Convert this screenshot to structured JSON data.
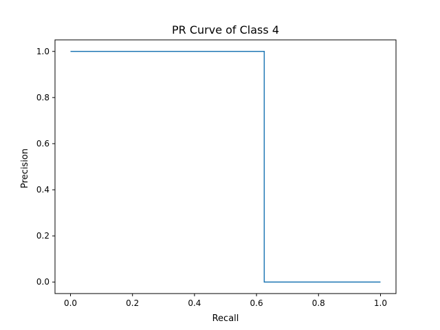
{
  "chart_data": {
    "type": "line",
    "title": "PR Curve of Class 4",
    "xlabel": "Recall",
    "ylabel": "Precision",
    "xlim": [
      -0.05,
      1.05
    ],
    "ylim": [
      -0.05,
      1.05
    ],
    "x_ticks": [
      "0.0",
      "0.2",
      "0.4",
      "0.6",
      "0.8",
      "1.0"
    ],
    "y_ticks": [
      "0.0",
      "0.2",
      "0.4",
      "0.6",
      "0.8",
      "1.0"
    ],
    "grid": false,
    "series": [
      {
        "color": "#1f77b4",
        "step": "post",
        "x": [
          0.0,
          0.625,
          0.625,
          1.0
        ],
        "y": [
          1.0,
          1.0,
          0.0,
          0.0
        ]
      }
    ]
  }
}
